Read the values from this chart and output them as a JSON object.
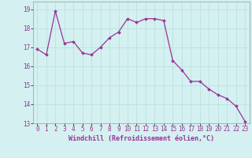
{
  "x": [
    0,
    1,
    2,
    3,
    4,
    5,
    6,
    7,
    8,
    9,
    10,
    11,
    12,
    13,
    14,
    15,
    16,
    17,
    18,
    19,
    20,
    21,
    22,
    23
  ],
  "y": [
    16.9,
    16.6,
    18.9,
    17.2,
    17.3,
    16.7,
    16.6,
    17.0,
    17.5,
    17.8,
    18.5,
    18.3,
    18.5,
    18.5,
    18.4,
    16.3,
    15.8,
    15.2,
    15.2,
    14.8,
    14.5,
    14.3,
    13.9,
    13.1
  ],
  "line_color": "#993399",
  "marker": "D",
  "markersize": 1.8,
  "linewidth": 0.9,
  "xlim": [
    -0.5,
    23.5
  ],
  "ylim": [
    13.0,
    19.4
  ],
  "yticks": [
    13,
    14,
    15,
    16,
    17,
    18,
    19
  ],
  "xticks": [
    0,
    1,
    2,
    3,
    4,
    5,
    6,
    7,
    8,
    9,
    10,
    11,
    12,
    13,
    14,
    15,
    16,
    17,
    18,
    19,
    20,
    21,
    22,
    23
  ],
  "xlabel": "Windchill (Refroidissement éolien,°C)",
  "bg_color": "#d4f0f0",
  "grid_color": "#b8dede",
  "tick_fontsize": 5.5,
  "label_fontsize": 6.0
}
